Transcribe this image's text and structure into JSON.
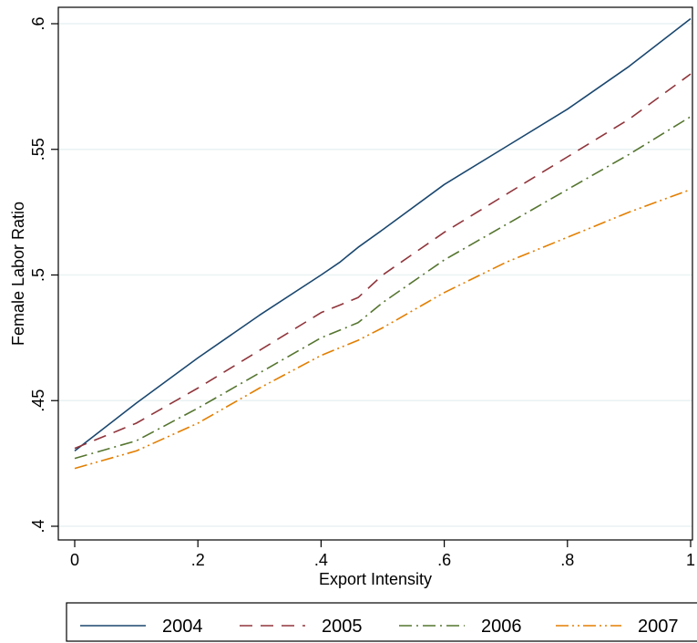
{
  "chart_data": {
    "type": "line",
    "xlabel": "Export Intensity",
    "ylabel": "Female Labor Ratio",
    "xlim": [
      0,
      1
    ],
    "ylim": [
      0.4,
      0.6
    ],
    "x_ticks": [
      {
        "value": 0,
        "label": "0"
      },
      {
        "value": 0.2,
        "label": ".2"
      },
      {
        "value": 0.4,
        "label": ".4"
      },
      {
        "value": 0.6,
        "label": ".6"
      },
      {
        "value": 0.8,
        "label": ".8"
      },
      {
        "value": 1,
        "label": "1"
      }
    ],
    "y_ticks": [
      {
        "value": 0.4,
        "label": ".4"
      },
      {
        "value": 0.45,
        "label": ".45"
      },
      {
        "value": 0.5,
        "label": ".5"
      },
      {
        "value": 0.55,
        "label": ".55"
      },
      {
        "value": 0.6,
        "label": ".6"
      }
    ],
    "grid": "horizontal",
    "legend_position": "bottom",
    "x": [
      0,
      0.1,
      0.2,
      0.3,
      0.4,
      0.43,
      0.46,
      0.5,
      0.6,
      0.7,
      0.8,
      0.9,
      1.0
    ],
    "series": [
      {
        "name": "2004",
        "color": "#1a476f",
        "dash": "solid",
        "values": [
          0.43,
          0.449,
          0.467,
          0.484,
          0.5,
          0.505,
          0.511,
          0.518,
          0.536,
          0.551,
          0.566,
          0.583,
          0.602
        ]
      },
      {
        "name": "2005",
        "color": "#90353b",
        "dash": "dash",
        "values": [
          0.431,
          0.441,
          0.455,
          0.47,
          0.485,
          0.488,
          0.491,
          0.5,
          0.517,
          0.532,
          0.547,
          0.562,
          0.58
        ]
      },
      {
        "name": "2006",
        "color": "#55752f",
        "dash": "dashdot",
        "values": [
          0.427,
          0.434,
          0.447,
          0.461,
          0.475,
          0.478,
          0.481,
          0.489,
          0.506,
          0.52,
          0.534,
          0.548,
          0.563
        ]
      },
      {
        "name": "2007",
        "color": "#e37e00",
        "dash": "dashdotdot",
        "values": [
          0.423,
          0.43,
          0.441,
          0.455,
          0.468,
          0.471,
          0.474,
          0.479,
          0.493,
          0.505,
          0.515,
          0.525,
          0.534
        ]
      }
    ]
  }
}
